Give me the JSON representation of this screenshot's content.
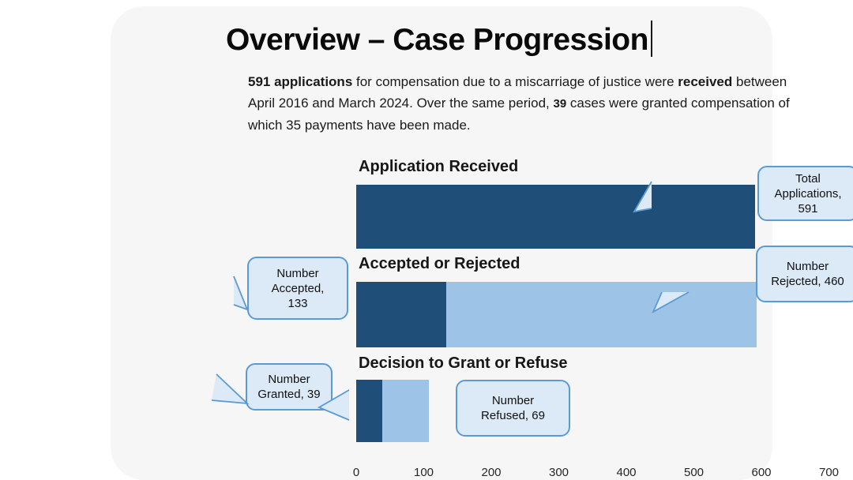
{
  "slide": {
    "title": "Overview – Case Progression",
    "intro_segments": [
      {
        "text": "591 applications",
        "bold": true,
        "small": false
      },
      {
        "text": " for compensation due to a miscarriage of justice were ",
        "bold": false,
        "small": false
      },
      {
        "text": "received",
        "bold": true,
        "small": false
      },
      {
        "text": " between April 2016 and March 2024. Over the same period,  ",
        "bold": false,
        "small": false
      },
      {
        "text": "39",
        "bold": true,
        "small": true
      },
      {
        "text": " cases were granted compensation of which 35 payments have been made.",
        "bold": false,
        "small": false
      }
    ]
  },
  "chart_data": {
    "type": "bar",
    "orientation": "horizontal",
    "title": "",
    "xlabel": "",
    "ylabel": "",
    "xlim": [
      0,
      700
    ],
    "x_ticks": [
      0,
      100,
      200,
      300,
      400,
      500,
      600,
      700
    ],
    "grid": false,
    "legend": false,
    "rows": [
      {
        "label": "Application Received",
        "segments": [
          {
            "name": "Total Applications",
            "value": 591,
            "colorKey": "dark"
          }
        ]
      },
      {
        "label": "Accepted or Rejected",
        "segments": [
          {
            "name": "Number Accepted",
            "value": 133,
            "colorKey": "dark"
          },
          {
            "name": "Number Rejected",
            "value": 460,
            "colorKey": "light"
          }
        ]
      },
      {
        "label": "Decision to Grant or Refuse",
        "segments": [
          {
            "name": "Number Granted",
            "value": 39,
            "colorKey": "dark"
          },
          {
            "name": "Number Refused",
            "value": 69,
            "colorKey": "light"
          }
        ]
      }
    ],
    "callouts": [
      {
        "id": "total-applications",
        "lines": [
          "Total",
          "Applications,",
          "591"
        ]
      },
      {
        "id": "number-accepted",
        "lines": [
          "Number",
          "Accepted,",
          "133"
        ]
      },
      {
        "id": "number-rejected",
        "lines": [
          "Number",
          "Rejected, 460"
        ]
      },
      {
        "id": "number-granted",
        "lines": [
          "Number",
          "Granted, 39"
        ]
      },
      {
        "id": "number-refused",
        "lines": [
          "Number",
          "Refused, 69"
        ]
      }
    ],
    "colors": {
      "dark": "#1f4e79",
      "light": "#9dc3e6",
      "callout_fill": "#dce9f6",
      "callout_border": "#5b9bd5",
      "slide_background": "#f6f6f6"
    }
  }
}
